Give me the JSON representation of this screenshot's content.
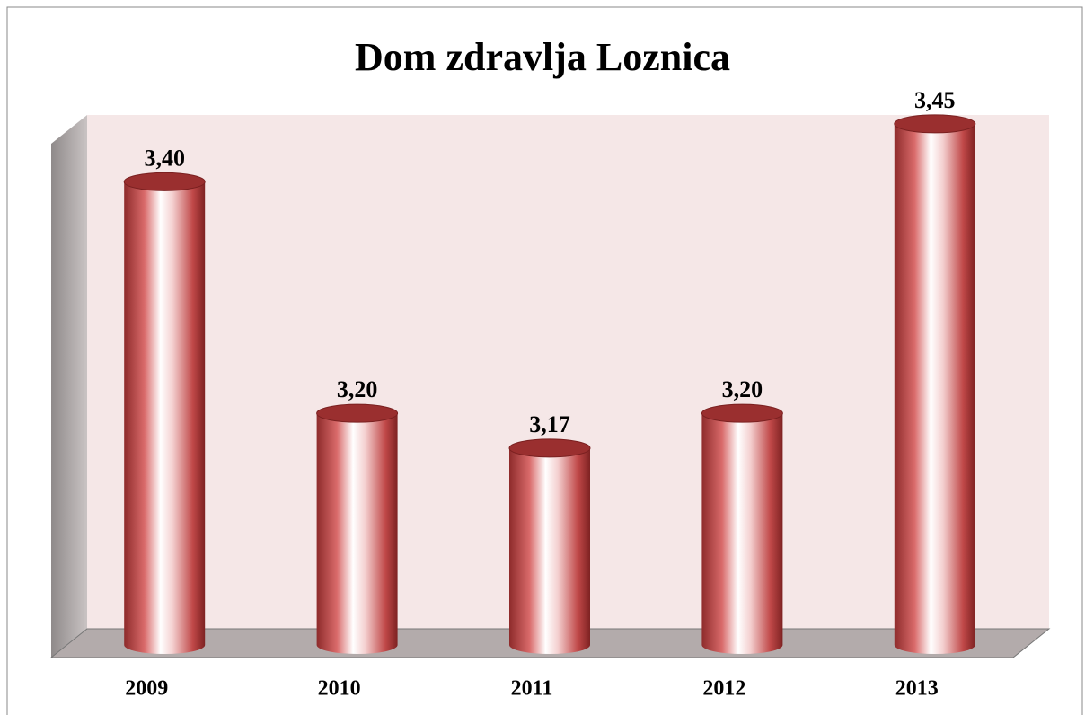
{
  "chart_data": {
    "type": "bar",
    "title": "Dom zdravlja Loznica",
    "categories": [
      "2009",
      "2010",
      "2011",
      "2012",
      "2013"
    ],
    "values": [
      3.4,
      3.2,
      3.17,
      3.2,
      3.45
    ],
    "value_labels": [
      "3,40",
      "3,20",
      "3,17",
      "3,20",
      "3,45"
    ],
    "color": "#b03a3a",
    "ylim": [
      3,
      3.46
    ]
  }
}
